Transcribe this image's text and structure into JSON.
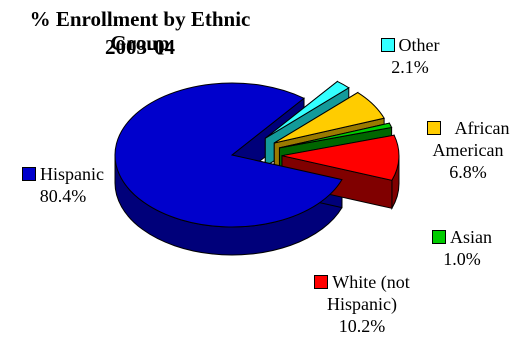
{
  "chart_data": {
    "type": "pie",
    "title": "% Enrollment by Ethnic Group",
    "subtitle": "2003-04",
    "slices": [
      {
        "label": "Hispanic",
        "value": 80.4,
        "display": "80.4%",
        "color": "#0000cc",
        "side": "#00007a"
      },
      {
        "label": "Other",
        "value": 2.1,
        "display": "2.1%",
        "color": "#33ffff",
        "side": "#139a9a"
      },
      {
        "label": "African American",
        "value": 6.8,
        "display": "6.8%",
        "color": "#ffcc00",
        "side": "#9a7a00"
      },
      {
        "label": "Asian",
        "value": 1.0,
        "display": "1.0%",
        "color": "#00cc00",
        "side": "#006600"
      },
      {
        "label": "White (not Hispanic)",
        "value": 10.2,
        "display": "10.2%",
        "color": "#ff0000",
        "side": "#800000"
      }
    ]
  },
  "legend": {
    "hispanic": {
      "label": "Hispanic",
      "value": "80.4%"
    },
    "other": {
      "label": "Other",
      "value": "2.1%"
    },
    "african_american": {
      "line1": "African",
      "line2": "American",
      "value": "6.8%"
    },
    "asian": {
      "label": "Asian",
      "value": "1.0%"
    },
    "white": {
      "line1": "White (not",
      "line2": "Hispanic)",
      "value": "10.2%"
    }
  }
}
